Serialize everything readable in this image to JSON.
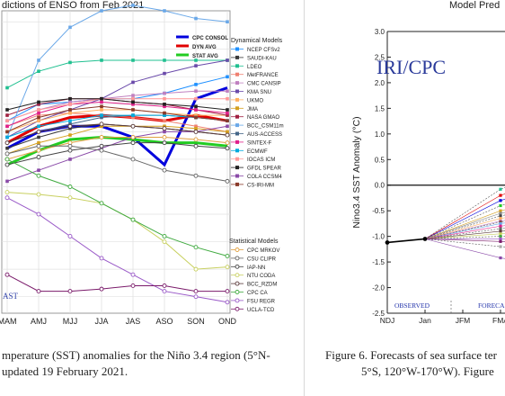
{
  "left_panel": {
    "title_fragment": "dictions of ENSO from Feb 2021",
    "corner_label": "AST",
    "caption_line1": "mperature (SST) anomalies  for the Niño 3.4 region (5°N-",
    "caption_line2": "updated 19 February 2021."
  },
  "right_panel": {
    "title_fragment": "Model Pred",
    "logo_text": "IRI/CPC",
    "caption_line1": "Figure  6. Forecasts of sea surface ter",
    "caption_line2": "5°S, 120°W-170°W).  Figure"
  },
  "chart_data": [
    {
      "type": "line",
      "title": "dictions of ENSO from Feb 2021",
      "categories": [
        "MAM",
        "AMJ",
        "MJJ",
        "JJA",
        "JAS",
        "ASO",
        "SON",
        "OND"
      ],
      "ylim": [
        -1.9,
        0.85
      ],
      "grid": true,
      "legend_placement": "right",
      "legend_groups": [
        {
          "heading": "",
          "entries": [
            "CPC CONSOL",
            "DYN AVG",
            "STAT AVG"
          ]
        },
        {
          "heading": "Dynamical Models",
          "entries": [
            "NCEP CFSv2",
            "SAUDI-KAU",
            "LDEO",
            "MetFRANCE",
            "CMC CANSIP",
            "KMA SNU",
            "UKMO",
            "JMA",
            "NASA GMAO",
            "BCC_CSM11m",
            "AUS-ACCESS",
            "SINTEX-F",
            "ECMWF",
            "IOCAS ICM",
            "GFDL SPEAR",
            "COLA CCSM4",
            "CS-IRI-MM"
          ]
        },
        {
          "heading": "Statistical Models",
          "entries": [
            "CPC MRKOV",
            "CSU CLIPR",
            "IAP-NN",
            "NTU CODA",
            "BCC_RZDM",
            "CPC CA",
            "FSU REGR",
            "UCLA-TCD"
          ]
        }
      ],
      "series": [
        {
          "name": "CPC CONSOL",
          "color": "#0000dd",
          "width": 3,
          "marker": false,
          "values": [
            -0.4,
            -0.25,
            -0.2,
            -0.2,
            -0.3,
            -0.55,
            0.05,
            0.15
          ]
        },
        {
          "name": "DYN AVG",
          "color": "#e00000",
          "width": 3,
          "marker": false,
          "values": [
            -0.35,
            -0.2,
            -0.12,
            -0.1,
            -0.12,
            -0.15,
            -0.1,
            -0.15
          ]
        },
        {
          "name": "STAT AVG",
          "color": "#22cc22",
          "width": 3,
          "marker": false,
          "values": [
            -0.55,
            -0.42,
            -0.32,
            -0.3,
            -0.32,
            -0.35,
            -0.35,
            -0.38
          ]
        },
        {
          "name": "NCEP CFSv2",
          "color": "#1e90ff",
          "width": 1,
          "marker": "square",
          "values": [
            -0.15,
            0.0,
            0.02,
            0.05,
            0.05,
            0.1,
            0.18,
            0.25
          ]
        },
        {
          "name": "SAUDI-KAU",
          "color": "#3a3a3a",
          "width": 1,
          "marker": "square",
          "values": [
            -0.4,
            -0.3,
            -0.22,
            -0.18,
            -0.2,
            -0.22,
            -0.25,
            -0.28
          ]
        },
        {
          "name": "LDEO",
          "color": "#20c090",
          "width": 1,
          "marker": "square",
          "values": [
            0.15,
            0.3,
            0.38,
            0.4,
            0.4,
            0.4,
            0.4,
            0.4
          ]
        },
        {
          "name": "MetFRANCE",
          "color": "#f08070",
          "width": 1,
          "marker": "square",
          "values": [
            -0.2,
            -0.1,
            -0.08,
            -0.1,
            -0.12,
            -0.15,
            -0.2,
            -0.25
          ]
        },
        {
          "name": "CMC CANSIP",
          "color": "#c080c0",
          "width": 1,
          "marker": "square",
          "values": [
            -0.15,
            -0.05,
            0.02,
            0.05,
            0.08,
            0.1,
            0.12,
            0.12
          ]
        },
        {
          "name": "KMA SNU",
          "color": "#6a4aaa",
          "width": 1,
          "marker": "square",
          "values": [
            -0.3,
            -0.15,
            -0.05,
            0.05,
            0.2,
            0.28,
            0.35,
            0.4
          ]
        },
        {
          "name": "UKMO",
          "color": "#ffb060",
          "width": 1,
          "marker": "square",
          "values": [
            -0.25,
            -0.15,
            -0.08,
            -0.05,
            -0.05,
            -0.08,
            -0.1,
            -0.1
          ]
        },
        {
          "name": "JMA",
          "color": "#d4a020",
          "width": 1,
          "marker": "square",
          "values": [
            -0.45,
            -0.35,
            -0.28,
            -0.2,
            -0.2,
            -0.2,
            -0.22,
            -0.25
          ]
        },
        {
          "name": "NASA GMAO",
          "color": "#a02040",
          "width": 1,
          "marker": "square",
          "values": [
            -0.1,
            0.0,
            0.05,
            0.05,
            0.02,
            0.0,
            -0.05,
            -0.1
          ]
        },
        {
          "name": "BCC_CSM11m",
          "color": "#6aa8e8",
          "width": 1,
          "marker": "square",
          "values": [
            -0.3,
            0.4,
            0.7,
            0.85,
            0.9,
            0.85,
            0.78,
            0.75
          ]
        },
        {
          "name": "AUS-ACCESS",
          "color": "#446688",
          "width": 1,
          "marker": "square",
          "values": [
            -0.35,
            -0.25,
            -0.18,
            -0.12,
            -0.1,
            -0.1,
            -0.12,
            -0.15
          ]
        },
        {
          "name": "SINTEX-F",
          "color": "#e0208a",
          "width": 1,
          "marker": "square",
          "values": [
            -0.2,
            -0.08,
            0.0,
            0.02,
            0.0,
            -0.02,
            -0.05,
            -0.08
          ]
        },
        {
          "name": "ECMWF",
          "color": "#00aadd",
          "width": 1,
          "marker": "square",
          "values": [
            -0.3,
            -0.2,
            -0.15,
            -0.1,
            -0.1,
            -0.1,
            -0.12,
            -0.15
          ]
        },
        {
          "name": "IOCAS ICM",
          "color": "#ff9999",
          "width": 1,
          "marker": "square",
          "values": [
            -0.15,
            -0.05,
            0.0,
            0.05,
            0.05,
            0.05,
            0.05,
            0.05
          ]
        },
        {
          "name": "GFDL SPEAR",
          "color": "#222222",
          "width": 1,
          "marker": "square",
          "values": [
            -0.05,
            0.02,
            0.05,
            0.05,
            0.02,
            0.0,
            -0.02,
            -0.05
          ]
        },
        {
          "name": "COLA CCSM4",
          "color": "#8a4aa8",
          "width": 1,
          "marker": "square",
          "values": [
            -0.7,
            -0.6,
            -0.5,
            -0.4,
            -0.3,
            -0.25,
            -0.25,
            -0.2
          ]
        },
        {
          "name": "CS-IRI-MM",
          "color": "#8a3a2a",
          "width": 1,
          "marker": "square",
          "values": [
            -0.25,
            -0.12,
            -0.05,
            -0.02,
            -0.05,
            -0.08,
            -0.12,
            -0.15
          ]
        },
        {
          "name": "CPC MRKOV",
          "color": "#e0a040",
          "width": 1,
          "marker": "circle",
          "values": [
            -0.5,
            -0.42,
            -0.35,
            -0.3,
            -0.3,
            -0.3,
            -0.32,
            -0.35
          ]
        },
        {
          "name": "CSU CLIPR",
          "color": "#666666",
          "width": 1,
          "marker": "circle",
          "values": [
            -0.45,
            -0.38,
            -0.38,
            -0.42,
            -0.5,
            -0.6,
            -0.65,
            -0.7
          ]
        },
        {
          "name": "IAP-NN",
          "color": "#444444",
          "width": 1,
          "marker": "circle",
          "values": [
            -0.55,
            -0.48,
            -0.42,
            -0.38,
            -0.35,
            -0.35,
            -0.38,
            -0.4
          ]
        },
        {
          "name": "NTU CODA",
          "color": "#c8d060",
          "width": 1,
          "marker": "circle",
          "values": [
            -0.8,
            -0.82,
            -0.85,
            -0.9,
            -1.05,
            -1.25,
            -1.5,
            -1.48
          ]
        },
        {
          "name": "BCC_RZDM",
          "color": "#5a3a3a",
          "width": 1,
          "marker": "circle",
          "values": [
            -0.35,
            -0.25,
            -0.2,
            -0.18,
            -0.2,
            -0.22,
            -0.25,
            -0.28
          ]
        },
        {
          "name": "CPC CA",
          "color": "#40aa40",
          "width": 1,
          "marker": "circle",
          "values": [
            -0.5,
            -0.65,
            -0.75,
            -0.9,
            -1.05,
            -1.2,
            -1.3,
            -1.38
          ]
        },
        {
          "name": "FSU REGR",
          "color": "#9a5ac8",
          "width": 1,
          "marker": "circle",
          "values": [
            -0.85,
            -1.0,
            -1.2,
            -1.4,
            -1.55,
            -1.7,
            -1.75,
            -1.8
          ]
        },
        {
          "name": "UCLA-TCD",
          "color": "#7a1a6a",
          "width": 1,
          "marker": "circle",
          "values": [
            -1.55,
            -1.7,
            -1.7,
            -1.68,
            -1.65,
            -1.65,
            -1.7,
            -1.7
          ]
        }
      ]
    },
    {
      "type": "line",
      "title": "Model Pred",
      "ylabel": "Nino3.4 SST Anomaly (°C)",
      "y_ticks": [
        3.0,
        2.5,
        2.0,
        1.5,
        1.0,
        0.5,
        0.0,
        -0.5,
        -1.0,
        -1.5,
        -2.0,
        -2.5
      ],
      "ylim": [
        -2.5,
        3.0
      ],
      "categories": [
        "NDJ",
        "Jan",
        "JFM",
        "FMA"
      ],
      "grid": false,
      "annotations": [
        "OBSERVED",
        "FORECA"
      ],
      "observed": {
        "x": [
          "NDJ",
          "Jan"
        ],
        "values": [
          -1.12,
          -1.05
        ]
      },
      "forecast_spread": {
        "start": "Jan",
        "start_value": -1.05,
        "fma_values": [
          -0.08,
          -0.2,
          -0.3,
          -0.4,
          -0.5,
          -0.55,
          -0.6,
          -0.65,
          -0.7,
          -0.72,
          -0.75,
          -0.8,
          -0.85,
          -0.9,
          -0.95,
          -1.0,
          -1.05,
          -1.1,
          -1.2,
          -1.42
        ]
      }
    }
  ]
}
